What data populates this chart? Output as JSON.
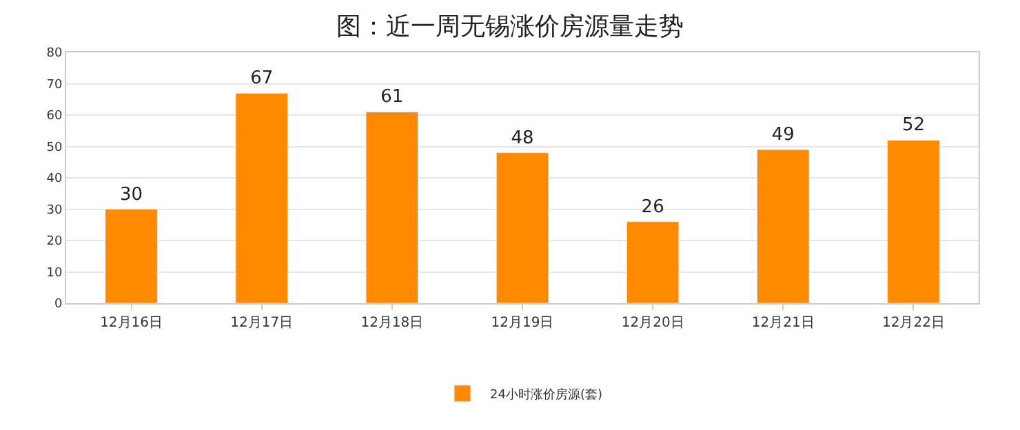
{
  "chart_data": {
    "type": "bar",
    "title": "图：近一周无锡涨价房源量走势",
    "categories": [
      "12月16日",
      "12月17日",
      "12月18日",
      "12月19日",
      "12月20日",
      "12月21日",
      "12月22日"
    ],
    "series": [
      {
        "name": "24小时涨价房源(套)",
        "color": "#ff8a00",
        "values": [
          30,
          67,
          61,
          48,
          26,
          49,
          52
        ]
      }
    ],
    "ylim": [
      0,
      80
    ],
    "yticks": [
      0,
      10,
      20,
      30,
      40,
      50,
      60,
      70,
      80
    ],
    "grid": "y",
    "legend": "bottom",
    "data_labels": true
  }
}
